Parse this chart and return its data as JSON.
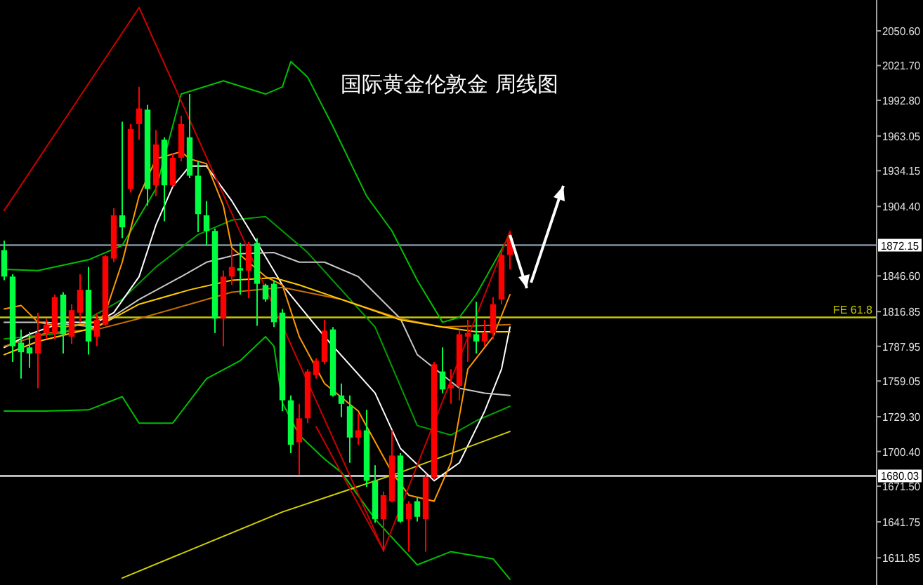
{
  "chart_data": {
    "type": "candlestick",
    "title": "国际黄金伦敦金 周线图",
    "categories": [
      null,
      null,
      null,
      null,
      null,
      null,
      null,
      null,
      null,
      null,
      null,
      null,
      null,
      null,
      null,
      null,
      null,
      null,
      null,
      null,
      null,
      null,
      null,
      null,
      null,
      null,
      null,
      null,
      null,
      null,
      null,
      null,
      null,
      null,
      null,
      null,
      null,
      null,
      null,
      null,
      null,
      null,
      null,
      null,
      null,
      null,
      null,
      null,
      null,
      null,
      null,
      null,
      null,
      null,
      null,
      null,
      null,
      null,
      null,
      null,
      null,
      null,
      null,
      null,
      null,
      null,
      null,
      null,
      null,
      null,
      null,
      null,
      null,
      null,
      null,
      null,
      null,
      null,
      null,
      null,
      null,
      null,
      null,
      null,
      null,
      null,
      null,
      null,
      null,
      null,
      null,
      null,
      null,
      null,
      null,
      null,
      null,
      null,
      null,
      null,
      null,
      null,
      null,
      null
    ],
    "ohlc": [
      [
        1868,
        1876,
        1843,
        1846
      ],
      [
        1846,
        1848,
        1775,
        1788
      ],
      [
        1791,
        1802,
        1761,
        1783
      ],
      [
        1787,
        1800,
        1770,
        1782
      ],
      [
        1782,
        1816,
        1753,
        1799
      ],
      [
        1799,
        1811,
        1794,
        1806
      ],
      [
        1799,
        1831,
        1794,
        1829
      ],
      [
        1831,
        1833,
        1782,
        1798
      ],
      [
        1796,
        1823,
        1790,
        1818
      ],
      [
        1816,
        1848,
        1808,
        1835
      ],
      [
        1835,
        1854,
        1781,
        1792
      ],
      [
        1796,
        1816,
        1788,
        1810
      ],
      [
        1806,
        1864,
        1805,
        1863
      ],
      [
        1861,
        1903,
        1858,
        1897
      ],
      [
        1897,
        1975,
        1878,
        1887
      ],
      [
        1919,
        1973,
        1916,
        1969
      ],
      [
        1973,
        2004,
        1960,
        1986
      ],
      [
        1985,
        1989,
        1905,
        1919
      ],
      [
        1922,
        1968,
        1913,
        1956
      ],
      [
        1960,
        1962,
        1892,
        1922
      ],
      [
        1922,
        1948,
        1921,
        1945
      ],
      [
        1945,
        1980,
        1942,
        1973
      ],
      [
        1962,
        1998,
        1928,
        1930
      ],
      [
        1930,
        1942,
        1883,
        1898
      ],
      [
        1897,
        1909,
        1872,
        1884
      ],
      [
        1884,
        1886,
        1799,
        1811
      ],
      [
        1811,
        1851,
        1788,
        1846
      ],
      [
        1846,
        1869,
        1839,
        1854
      ],
      [
        1853,
        1874,
        1831,
        1851
      ],
      [
        1851,
        1875,
        1828,
        1872
      ],
      [
        1874,
        1878,
        1805,
        1840
      ],
      [
        1839,
        1840,
        1825,
        1827
      ],
      [
        1840,
        1843,
        1804,
        1808
      ],
      [
        1816,
        1819,
        1734,
        1743
      ],
      [
        1743,
        1747,
        1699,
        1706
      ],
      [
        1708,
        1740,
        1681,
        1728
      ],
      [
        1728,
        1769,
        1724,
        1767
      ],
      [
        1764,
        1778,
        1761,
        1776
      ],
      [
        1775,
        1810,
        1773,
        1801
      ],
      [
        1802,
        1804,
        1746,
        1747
      ],
      [
        1747,
        1757,
        1729,
        1740
      ],
      [
        1738,
        1747,
        1691,
        1712
      ],
      [
        1712,
        1732,
        1706,
        1718
      ],
      [
        1718,
        1735,
        1671,
        1676
      ],
      [
        1676,
        1689,
        1641,
        1644
      ],
      [
        1644,
        1667,
        1617,
        1664
      ],
      [
        1659,
        1718,
        1658,
        1697
      ],
      [
        1697,
        1699,
        1641,
        1642
      ],
      [
        1644,
        1659,
        1617,
        1657
      ],
      [
        1659,
        1662,
        1642,
        1646
      ],
      [
        1644,
        1682,
        1617,
        1679
      ],
      [
        1679,
        1775,
        1677,
        1773
      ],
      [
        1767,
        1787,
        1749,
        1752
      ],
      [
        1753,
        1769,
        1740,
        1756
      ],
      [
        1755,
        1802,
        1743,
        1798
      ],
      [
        1796,
        1810,
        1775,
        1799
      ],
      [
        1798,
        1825,
        1782,
        1792
      ],
      [
        1792,
        1810,
        1788,
        1799
      ],
      [
        1799,
        1829,
        1794,
        1823
      ],
      [
        1827,
        1868,
        1823,
        1864
      ],
      [
        1864,
        1883,
        1852,
        1878
      ],
      null,
      null,
      null,
      null,
      null,
      null,
      null,
      null,
      null,
      null,
      null,
      null,
      null,
      null,
      null,
      null,
      null,
      null,
      null,
      null,
      null,
      null,
      null,
      null,
      null,
      null,
      null,
      null,
      null,
      null,
      null,
      null,
      null,
      null,
      null,
      null,
      null,
      null,
      null,
      null,
      null,
      null,
      null
    ],
    "colors": [
      "#00ff40",
      "#00ff40",
      "#00ff40",
      "#00ff40",
      "#ff0000",
      "#ff0000",
      "#ff0000",
      "#00ff40",
      "#ff0000",
      "#ff0000",
      "#00ff40",
      "#ff0000",
      "#ff0000",
      "#ff0000",
      "#00ff40",
      "#ff0000",
      "#ff0000",
      "#00ff40",
      "#ff0000",
      "#00ff40",
      "#ff0000",
      "#ff0000",
      "#00ff40",
      "#00ff40",
      "#00ff40",
      "#00ff40",
      "#ff0000",
      "#ff0000",
      "#00ff40",
      "#ff0000",
      "#00ff40",
      "#00ff40",
      "#00ff40",
      "#00ff40",
      "#00ff40",
      "#ff0000",
      "#ff0000",
      "#ff0000",
      "#ff0000",
      "#00ff40",
      "#00ff40",
      "#00ff40",
      "#ff0000",
      "#00ff40",
      "#00ff40",
      "#ff0000",
      "#ff0000",
      "#00ff40",
      "#ff0000",
      "#00ff40",
      "#ff0000",
      "#ff0000",
      "#00ff40",
      "#ff0000",
      "#ff0000",
      "#ff0000",
      "#00ff40",
      "#ff0000",
      "#ff0000",
      "#ff0000",
      "#ff0000",
      null,
      null,
      null,
      null,
      null,
      null,
      null,
      null,
      null,
      null,
      null,
      null,
      null,
      null,
      null,
      null,
      null,
      null,
      null,
      null,
      null,
      null,
      null,
      null,
      null,
      null,
      null,
      null,
      null,
      null,
      null,
      null,
      null,
      null,
      null,
      null,
      null,
      null,
      null,
      null,
      null,
      null,
      null
    ],
    "series": [
      {
        "type": "line",
        "color": "#00c000",
        "values": [
          1852,
          null,
          null,
          null,
          1851,
          null,
          null,
          null,
          null,
          null,
          1860,
          null,
          null,
          null,
          1872,
          null,
          null,
          null,
          1919,
          null,
          null,
          1998,
          null,
          null,
          null,
          null,
          2009,
          null,
          null,
          null,
          null,
          1998,
          null,
          2004,
          2025,
          null,
          2012,
          null,
          null,
          1971,
          null,
          null,
          null,
          1913,
          null,
          null,
          1884,
          null,
          null,
          1843,
          null,
          null,
          1808,
          null,
          1812,
          null,
          1831,
          null,
          null,
          null,
          1881,
          null,
          null,
          null,
          null,
          null,
          null,
          null,
          null,
          null,
          null,
          null,
          null,
          null,
          null,
          null,
          null,
          null,
          null,
          null,
          null,
          null,
          null,
          null,
          null,
          null,
          null,
          null,
          null,
          null,
          null,
          null,
          null,
          null,
          null,
          null,
          null,
          null,
          null,
          null,
          null,
          null,
          null,
          null
        ]
      },
      {
        "type": "line",
        "color": "#00a000",
        "values": [
          1794,
          null,
          null,
          null,
          null,
          null,
          null,
          1799,
          null,
          null,
          null,
          null,
          null,
          null,
          1827,
          null,
          null,
          null,
          1854,
          null,
          null,
          null,
          null,
          1881,
          null,
          null,
          null,
          1893,
          null,
          null,
          null,
          1896,
          null,
          null,
          null,
          null,
          1866,
          null,
          null,
          null,
          null,
          null,
          null,
          null,
          1804,
          null,
          null,
          null,
          null,
          1722,
          null,
          null,
          null,
          1714,
          null,
          null,
          1726,
          null,
          null,
          null,
          1738,
          null,
          null,
          null,
          null,
          null,
          null,
          null,
          null,
          null,
          null,
          null,
          null,
          null,
          null,
          null,
          null,
          null,
          null,
          null,
          null,
          null,
          null,
          null,
          null,
          null,
          null,
          null,
          null,
          null,
          null,
          null,
          null,
          null,
          null,
          null,
          null,
          null,
          null,
          null,
          null,
          null,
          null,
          null
        ]
      },
      {
        "type": "line",
        "color": "#00c000",
        "values": [
          1734,
          null,
          null,
          null,
          null,
          1734,
          null,
          null,
          null,
          null,
          1735,
          null,
          null,
          null,
          1746,
          null,
          1724,
          null,
          null,
          null,
          1724,
          null,
          null,
          null,
          1761,
          null,
          null,
          null,
          1776,
          null,
          null,
          1796,
          1788,
          1741,
          null,
          1714,
          null,
          null,
          1694,
          null,
          1683,
          null,
          null,
          null,
          1644,
          null,
          null,
          null,
          null,
          1606,
          null,
          null,
          null,
          1617,
          null,
          null,
          null,
          null,
          1611,
          null,
          1594,
          null,
          null,
          null,
          null,
          null,
          null,
          null,
          null,
          null,
          null,
          null,
          null,
          null,
          null,
          null,
          null,
          null,
          null,
          null,
          null,
          null,
          null,
          null,
          null,
          null,
          null,
          null,
          null,
          null,
          null,
          null,
          null,
          null,
          null,
          null,
          null,
          null,
          null,
          null,
          null,
          null,
          null,
          null
        ]
      },
      {
        "type": "line",
        "color": "#ffffff",
        "values": [
          1787,
          null,
          null,
          1798,
          null,
          null,
          null,
          1808,
          null,
          null,
          null,
          1808,
          null,
          1816,
          null,
          null,
          1846,
          null,
          1889,
          null,
          1921,
          null,
          1938,
          null,
          1938,
          null,
          null,
          1909,
          null,
          1886,
          null,
          null,
          null,
          1839,
          null,
          null,
          null,
          null,
          1796,
          null,
          null,
          null,
          null,
          null,
          1749,
          null,
          null,
          1703,
          null,
          null,
          null,
          1676,
          null,
          null,
          1691,
          null,
          null,
          1734,
          null,
          1769,
          1804,
          null,
          null,
          null,
          null,
          null,
          null,
          null,
          null,
          null,
          null,
          null,
          null,
          null,
          null,
          null,
          null,
          null,
          null,
          null,
          null,
          null,
          null,
          null,
          null,
          null,
          null,
          null,
          null,
          null,
          null,
          null,
          null,
          null,
          null,
          null,
          null,
          null,
          null,
          null,
          null,
          null,
          null,
          null
        ]
      },
      {
        "type": "line",
        "color": "#c8c8c8",
        "values": [
          1808,
          null,
          null,
          null,
          null,
          1808,
          null,
          null,
          null,
          null,
          null,
          1804,
          null,
          null,
          null,
          null,
          1827,
          null,
          null,
          null,
          null,
          1846,
          null,
          null,
          1858,
          null,
          null,
          null,
          1865,
          null,
          null,
          null,
          1866,
          null,
          null,
          1858,
          null,
          null,
          1858,
          null,
          null,
          null,
          1846,
          null,
          null,
          null,
          null,
          1811,
          null,
          1781,
          null,
          null,
          null,
          null,
          1753,
          null,
          null,
          1749,
          null,
          null,
          1747,
          null,
          null,
          null,
          null,
          null,
          null,
          null,
          null,
          null,
          null,
          null,
          null,
          null,
          null,
          null,
          null,
          null,
          null,
          null,
          null,
          null,
          null,
          null,
          null,
          null,
          null,
          null,
          null,
          null,
          null,
          null,
          null,
          null,
          null,
          null,
          null,
          null,
          null,
          null,
          null,
          null,
          null,
          null
        ]
      },
      {
        "type": "line",
        "color": "#ff9900",
        "values": [
          1819,
          null,
          1822,
          null,
          1808,
          null,
          null,
          1804,
          null,
          null,
          null,
          1808,
          1816,
          null,
          1858,
          null,
          1913,
          null,
          1944,
          null,
          null,
          1950,
          1944,
          null,
          1940,
          null,
          1905,
          1870,
          null,
          null,
          null,
          1846,
          null,
          1839,
          null,
          1796,
          null,
          null,
          1757,
          null,
          null,
          null,
          1734,
          null,
          null,
          null,
          1683,
          null,
          1664,
          null,
          null,
          1659,
          null,
          1691,
          null,
          1769,
          null,
          null,
          1796,
          null,
          1831,
          null,
          null,
          null,
          null,
          null,
          null,
          null,
          null,
          null,
          null,
          null,
          null,
          null,
          null,
          null,
          null,
          null,
          null,
          null,
          null,
          null,
          null,
          null,
          null,
          null,
          null,
          null,
          null,
          null,
          null,
          null,
          null,
          null,
          null,
          null,
          null,
          null,
          null,
          null,
          null,
          null,
          null,
          null
        ]
      },
      {
        "type": "line",
        "color": "#c87000",
        "values": [
          1788,
          null,
          null,
          null,
          null,
          1799,
          null,
          null,
          null,
          null,
          null,
          1802,
          null,
          null,
          null,
          null,
          1811,
          null,
          null,
          null,
          null,
          null,
          1823,
          null,
          null,
          null,
          null,
          1833,
          null,
          null,
          null,
          null,
          null,
          1837,
          null,
          null,
          null,
          null,
          null,
          null,
          1827,
          null,
          null,
          null,
          null,
          null,
          null,
          1811,
          null,
          null,
          null,
          null,
          1804,
          null,
          null,
          null,
          null,
          null,
          null,
          null,
          1806,
          null,
          null,
          null,
          null,
          null,
          null,
          null,
          null,
          null,
          null,
          null,
          null,
          null,
          null,
          null,
          null,
          null,
          null,
          null,
          null,
          null,
          null,
          null,
          null,
          null,
          null,
          null,
          null,
          null,
          null,
          null,
          null,
          null,
          null,
          null,
          null,
          null,
          null,
          null,
          null,
          null,
          null,
          null
        ]
      },
      {
        "type": "line",
        "color": "#ffcc00",
        "values": [
          1781,
          null,
          null,
          null,
          1792,
          null,
          null,
          null,
          null,
          null,
          null,
          1804,
          null,
          null,
          null,
          null,
          1823,
          null,
          null,
          null,
          null,
          null,
          1835,
          null,
          null,
          null,
          null,
          1843,
          null,
          null,
          null,
          null,
          1845,
          null,
          null,
          1839,
          null,
          null,
          null,
          null,
          1827,
          null,
          null,
          null,
          null,
          null,
          null,
          1810,
          null,
          null,
          null,
          null,
          1804,
          null,
          null,
          null,
          1800,
          null,
          null,
          null,
          1800,
          null,
          null,
          null,
          null,
          null,
          null,
          null,
          null,
          null,
          null,
          null,
          null,
          null,
          null,
          null,
          null,
          null,
          null,
          null,
          null,
          null,
          null,
          null,
          null,
          null,
          null,
          null,
          null,
          null,
          null,
          null,
          null,
          null,
          null,
          null,
          null,
          null,
          null,
          null,
          null,
          null,
          null,
          null
        ]
      },
      {
        "type": "line",
        "color": "#d0d000",
        "values": [
          null,
          null,
          null,
          null,
          null,
          null,
          null,
          null,
          null,
          null,
          null,
          null,
          null,
          null,
          1595,
          null,
          null,
          null,
          null,
          null,
          null,
          null,
          null,
          null,
          null,
          null,
          null,
          null,
          null,
          null,
          null,
          null,
          null,
          1650,
          null,
          null,
          null,
          null,
          null,
          null,
          null,
          null,
          null,
          null,
          null,
          null,
          null,
          1683,
          null,
          null,
          null,
          null,
          null,
          null,
          null,
          null,
          null,
          null,
          null,
          null,
          1717,
          null,
          null,
          null,
          null,
          null,
          null,
          null,
          null,
          null,
          null,
          null,
          null,
          null,
          null,
          null,
          null,
          null,
          null,
          null,
          null,
          null,
          null,
          null,
          null,
          null,
          null,
          null,
          null,
          null,
          null,
          null,
          null,
          null,
          null,
          null,
          null,
          null,
          null,
          null,
          null,
          null,
          null,
          null
        ]
      },
      {
        "type": "line",
        "color": "#cc0000",
        "values": [
          1901,
          null,
          null,
          null,
          null,
          null,
          null,
          null,
          null,
          null,
          null,
          null,
          null,
          null,
          null,
          null,
          2070,
          null,
          null,
          null,
          null,
          null,
          null,
          null,
          null,
          null,
          null,
          null,
          null,
          null,
          null,
          null,
          null,
          null,
          null,
          null,
          null,
          null,
          null,
          null,
          null,
          null,
          null,
          null,
          null,
          1618,
          null,
          null,
          null,
          null,
          null,
          null,
          null,
          null,
          null,
          null,
          null,
          null,
          null,
          null,
          1884,
          null,
          null,
          null,
          null,
          null,
          null,
          null,
          null,
          null,
          null,
          null,
          null,
          null,
          null,
          null,
          null,
          null,
          null,
          null,
          null,
          null,
          null,
          null,
          null,
          null,
          null,
          null,
          null,
          null,
          null,
          null,
          null,
          null,
          null,
          null,
          null,
          null,
          null,
          null,
          null,
          null,
          null,
          null
        ]
      },
      {
        "type": "line",
        "color": "#cc0000",
        "values": [
          null,
          null,
          null,
          null,
          null,
          null,
          null,
          null,
          null,
          null,
          null,
          null,
          null,
          null,
          null,
          null,
          null,
          null,
          null,
          null,
          null,
          null,
          null,
          null,
          null,
          null,
          null,
          null,
          null,
          null,
          null,
          null,
          null,
          null,
          null,
          null,
          null,
          1721,
          null,
          null,
          null,
          null,
          null,
          null,
          null,
          1618,
          null,
          null,
          null,
          null,
          null,
          null,
          null,
          null,
          null,
          null,
          null,
          null,
          null,
          null,
          null,
          null,
          null,
          null,
          null,
          null,
          null,
          null,
          null,
          null,
          null,
          null,
          null,
          null,
          null,
          null,
          null,
          null,
          null,
          null,
          null,
          null,
          null,
          null,
          null,
          null,
          null,
          null,
          null,
          null,
          null,
          null,
          null,
          null,
          null,
          null,
          null,
          null,
          null,
          null,
          null,
          null,
          null,
          null
        ]
      }
    ],
    "ylim": [
      1589.2,
      2076.3
    ],
    "yticks": [
      {
        "value": 2050.6,
        "label": "2050.60"
      },
      {
        "value": 2021.7,
        "label": "2021.70"
      },
      {
        "value": 1992.8,
        "label": "1992.80"
      },
      {
        "value": 1963.05,
        "label": "1963.05"
      },
      {
        "value": 1934.15,
        "label": "1934.15"
      },
      {
        "value": 1904.4,
        "label": "1904.40"
      },
      {
        "value": 1846.6,
        "label": "1846.60"
      },
      {
        "value": 1816.85,
        "label": "1816.85"
      },
      {
        "value": 1787.95,
        "label": "1787.95"
      },
      {
        "value": 1759.05,
        "label": "1759.05"
      },
      {
        "value": 1729.3,
        "label": "1729.30"
      },
      {
        "value": 1700.4,
        "label": "1700.40"
      },
      {
        "value": 1671.5,
        "label": "1671.50"
      },
      {
        "value": 1641.75,
        "label": "1641.75"
      },
      {
        "value": 1611.85,
        "label": "1611.85"
      }
    ],
    "tick_labels": "y",
    "ref_lines": [
      {
        "axis": "y",
        "value": 1872.15,
        "label": "1872.15",
        "color": "#8090a0"
      },
      {
        "axis": "y",
        "value": 1680.03,
        "label": "1680.03",
        "color": "#e0e0e0"
      },
      {
        "axis": "y",
        "value": 1812,
        "label": "FE 61.8",
        "color": "#c8c800"
      }
    ],
    "grid": false
  }
}
